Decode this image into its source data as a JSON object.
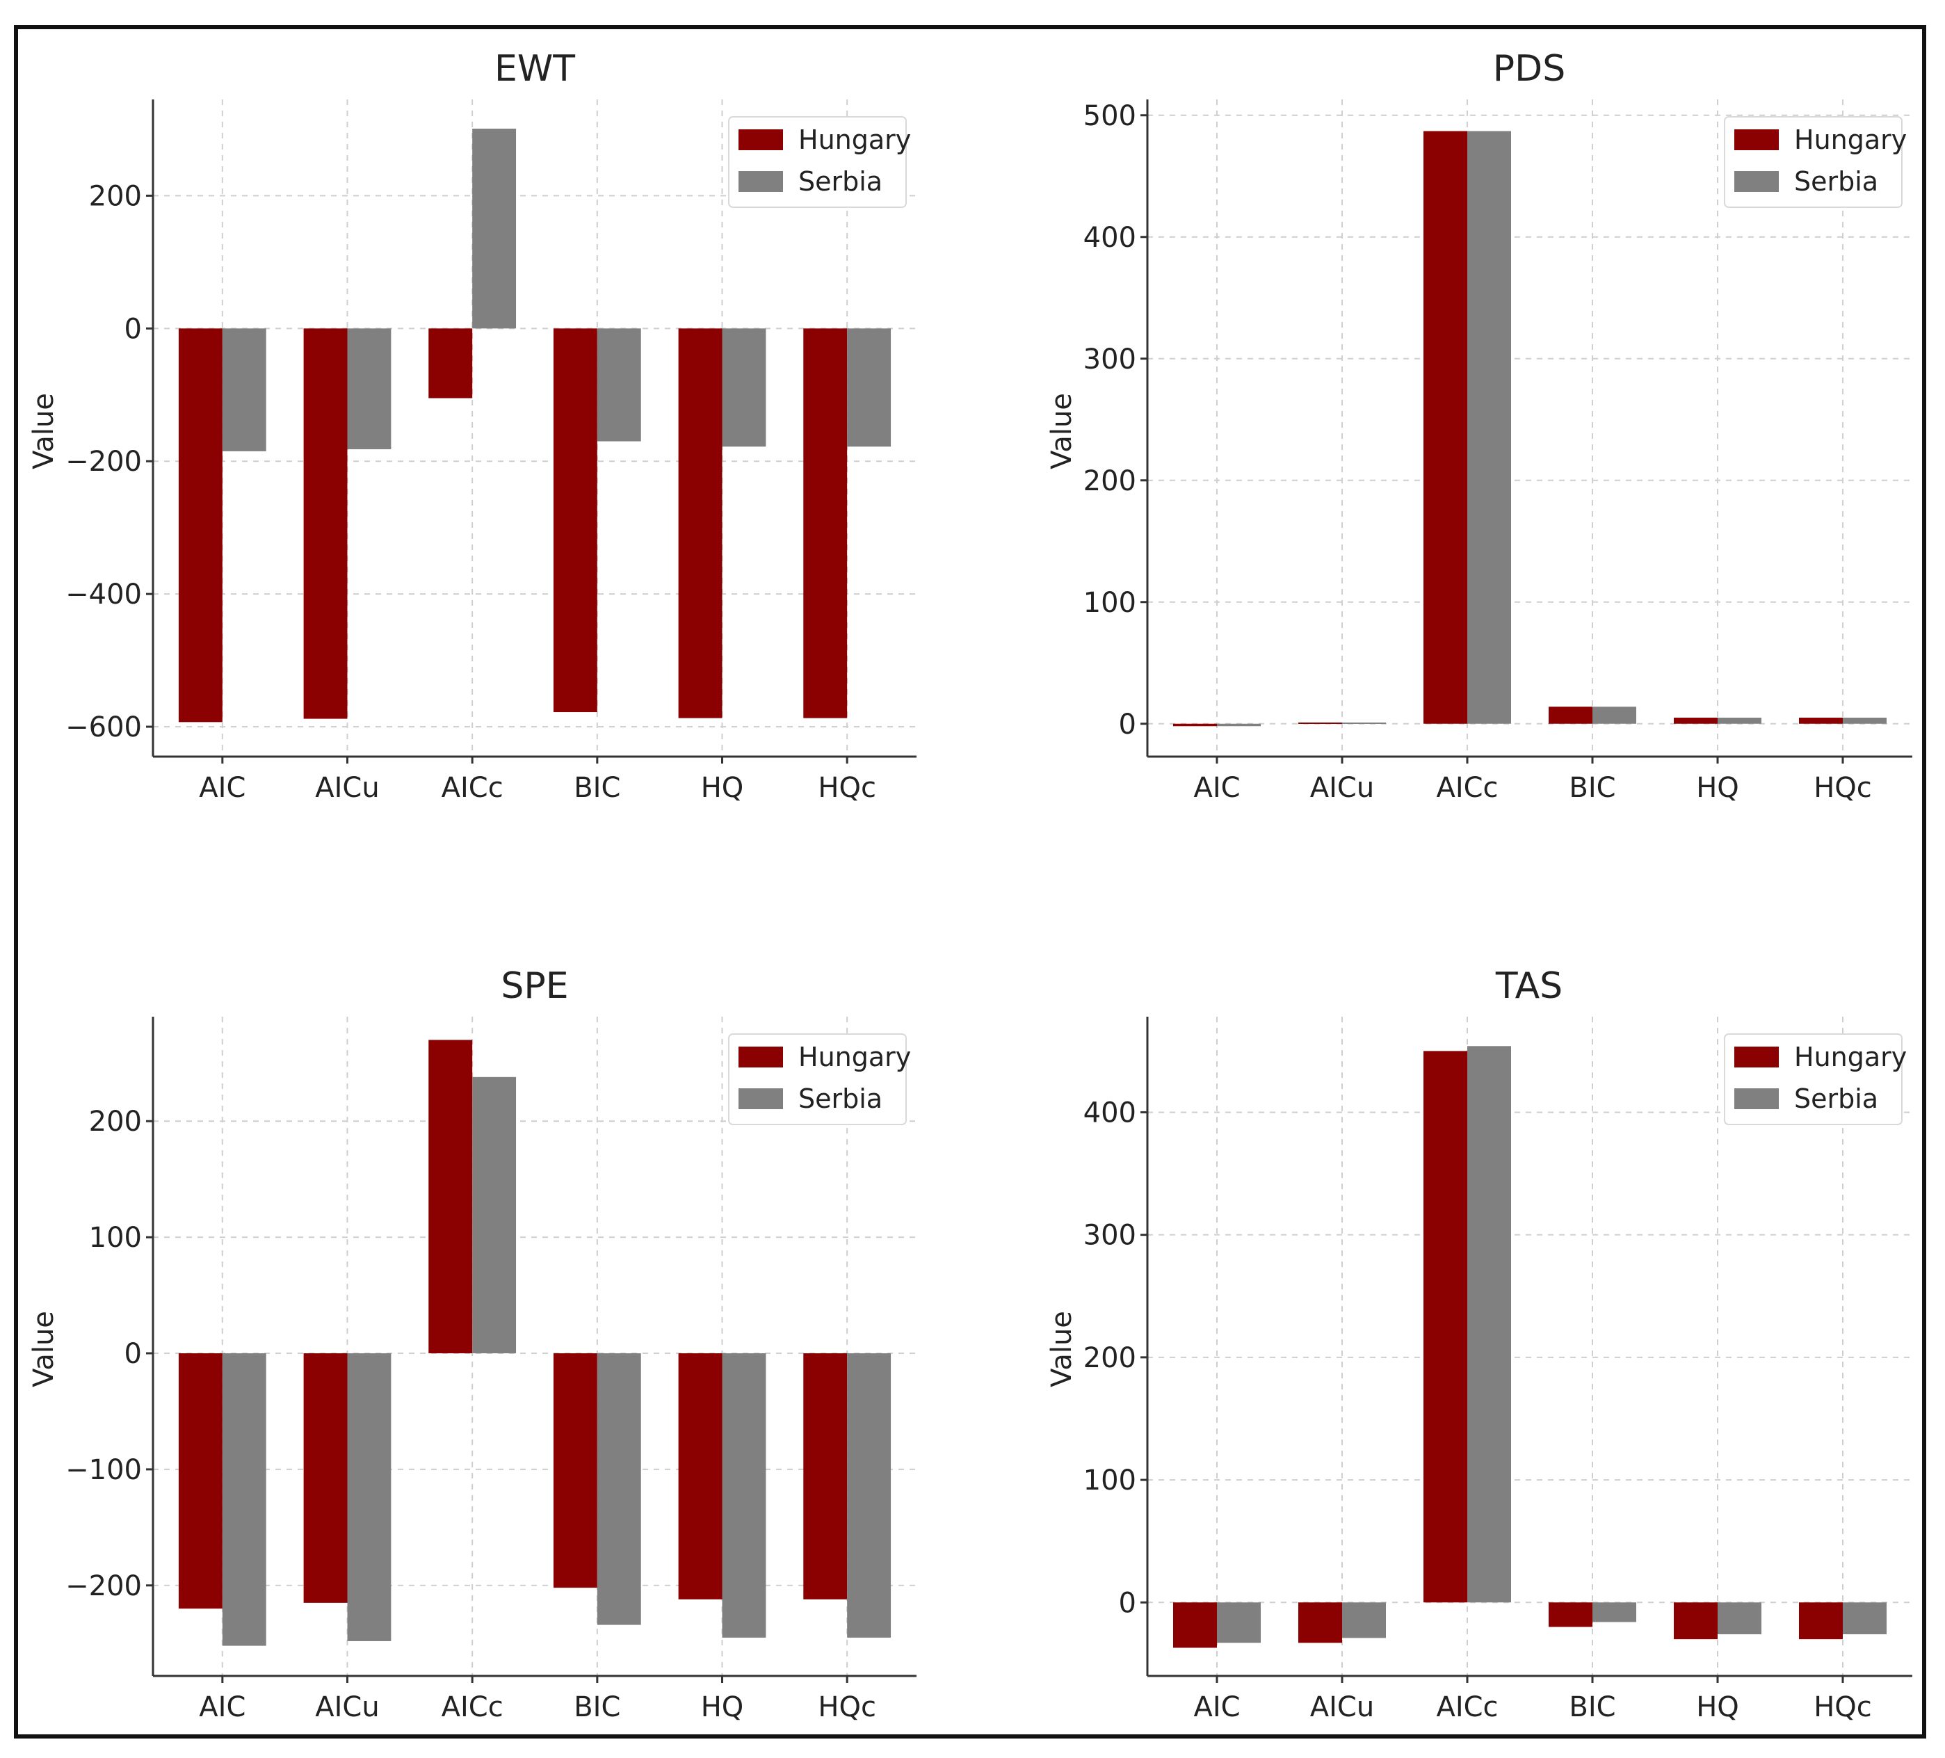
{
  "colors": {
    "hungary": "#8b0000",
    "serbia": "#808080"
  },
  "chart_data": [
    {
      "type": "bar",
      "title": "EWT",
      "xlabel": "",
      "ylabel": "Value",
      "ylim": [
        -645,
        345
      ],
      "yticks": [
        -600,
        -400,
        -200,
        0,
        200
      ],
      "ytick_labels": [
        "−600",
        "−400",
        "−200",
        "0",
        "200"
      ],
      "categories": [
        "AIC",
        "AICu",
        "AICc",
        "BIC",
        "HQ",
        "HQc"
      ],
      "legend": [
        "Hungary",
        "Serbia"
      ],
      "legend_position": "top-right",
      "grid": true,
      "series": [
        {
          "name": "Hungary",
          "values": [
            -593,
            -588,
            -105,
            -578,
            -587,
            -587
          ]
        },
        {
          "name": "Serbia",
          "values": [
            -185,
            -182,
            301,
            -170,
            -178,
            -178
          ]
        }
      ]
    },
    {
      "type": "bar",
      "title": "PDS",
      "xlabel": "",
      "ylabel": "Value",
      "ylim": [
        -27,
        513
      ],
      "yticks": [
        0,
        100,
        200,
        300,
        400,
        500
      ],
      "ytick_labels": [
        "0",
        "100",
        "200",
        "300",
        "400",
        "500"
      ],
      "categories": [
        "AIC",
        "AICu",
        "AICc",
        "BIC",
        "HQ",
        "HQc"
      ],
      "legend": [
        "Hungary",
        "Serbia"
      ],
      "legend_position": "top-right",
      "grid": true,
      "series": [
        {
          "name": "Hungary",
          "values": [
            -2,
            1,
            487,
            14,
            5,
            5
          ]
        },
        {
          "name": "Serbia",
          "values": [
            -2,
            1,
            487,
            14,
            5,
            5
          ]
        }
      ]
    },
    {
      "type": "bar",
      "title": "SPE",
      "xlabel": "",
      "ylabel": "Value",
      "ylim": [
        -278,
        290
      ],
      "yticks": [
        -200,
        -100,
        0,
        100,
        200
      ],
      "ytick_labels": [
        "−200",
        "−100",
        "0",
        "100",
        "200"
      ],
      "categories": [
        "AIC",
        "AICu",
        "AICc",
        "BIC",
        "HQ",
        "HQc"
      ],
      "legend": [
        "Hungary",
        "Serbia"
      ],
      "legend_position": "top-right",
      "grid": true,
      "series": [
        {
          "name": "Hungary",
          "values": [
            -220,
            -215,
            270,
            -202,
            -212,
            -212
          ]
        },
        {
          "name": "Serbia",
          "values": [
            -252,
            -248,
            238,
            -234,
            -245,
            -245
          ]
        }
      ]
    },
    {
      "type": "bar",
      "title": "TAS",
      "xlabel": "",
      "ylabel": "Value",
      "ylim": [
        -60,
        478
      ],
      "yticks": [
        0,
        100,
        200,
        300,
        400
      ],
      "ytick_labels": [
        "0",
        "100",
        "200",
        "300",
        "400"
      ],
      "categories": [
        "AIC",
        "AICu",
        "AICc",
        "BIC",
        "HQ",
        "HQc"
      ],
      "legend": [
        "Hungary",
        "Serbia"
      ],
      "legend_position": "top-right",
      "grid": true,
      "series": [
        {
          "name": "Hungary",
          "values": [
            -37,
            -33,
            450,
            -20,
            -30,
            -30
          ]
        },
        {
          "name": "Serbia",
          "values": [
            -33,
            -29,
            454,
            -16,
            -26,
            -26
          ]
        }
      ]
    }
  ]
}
